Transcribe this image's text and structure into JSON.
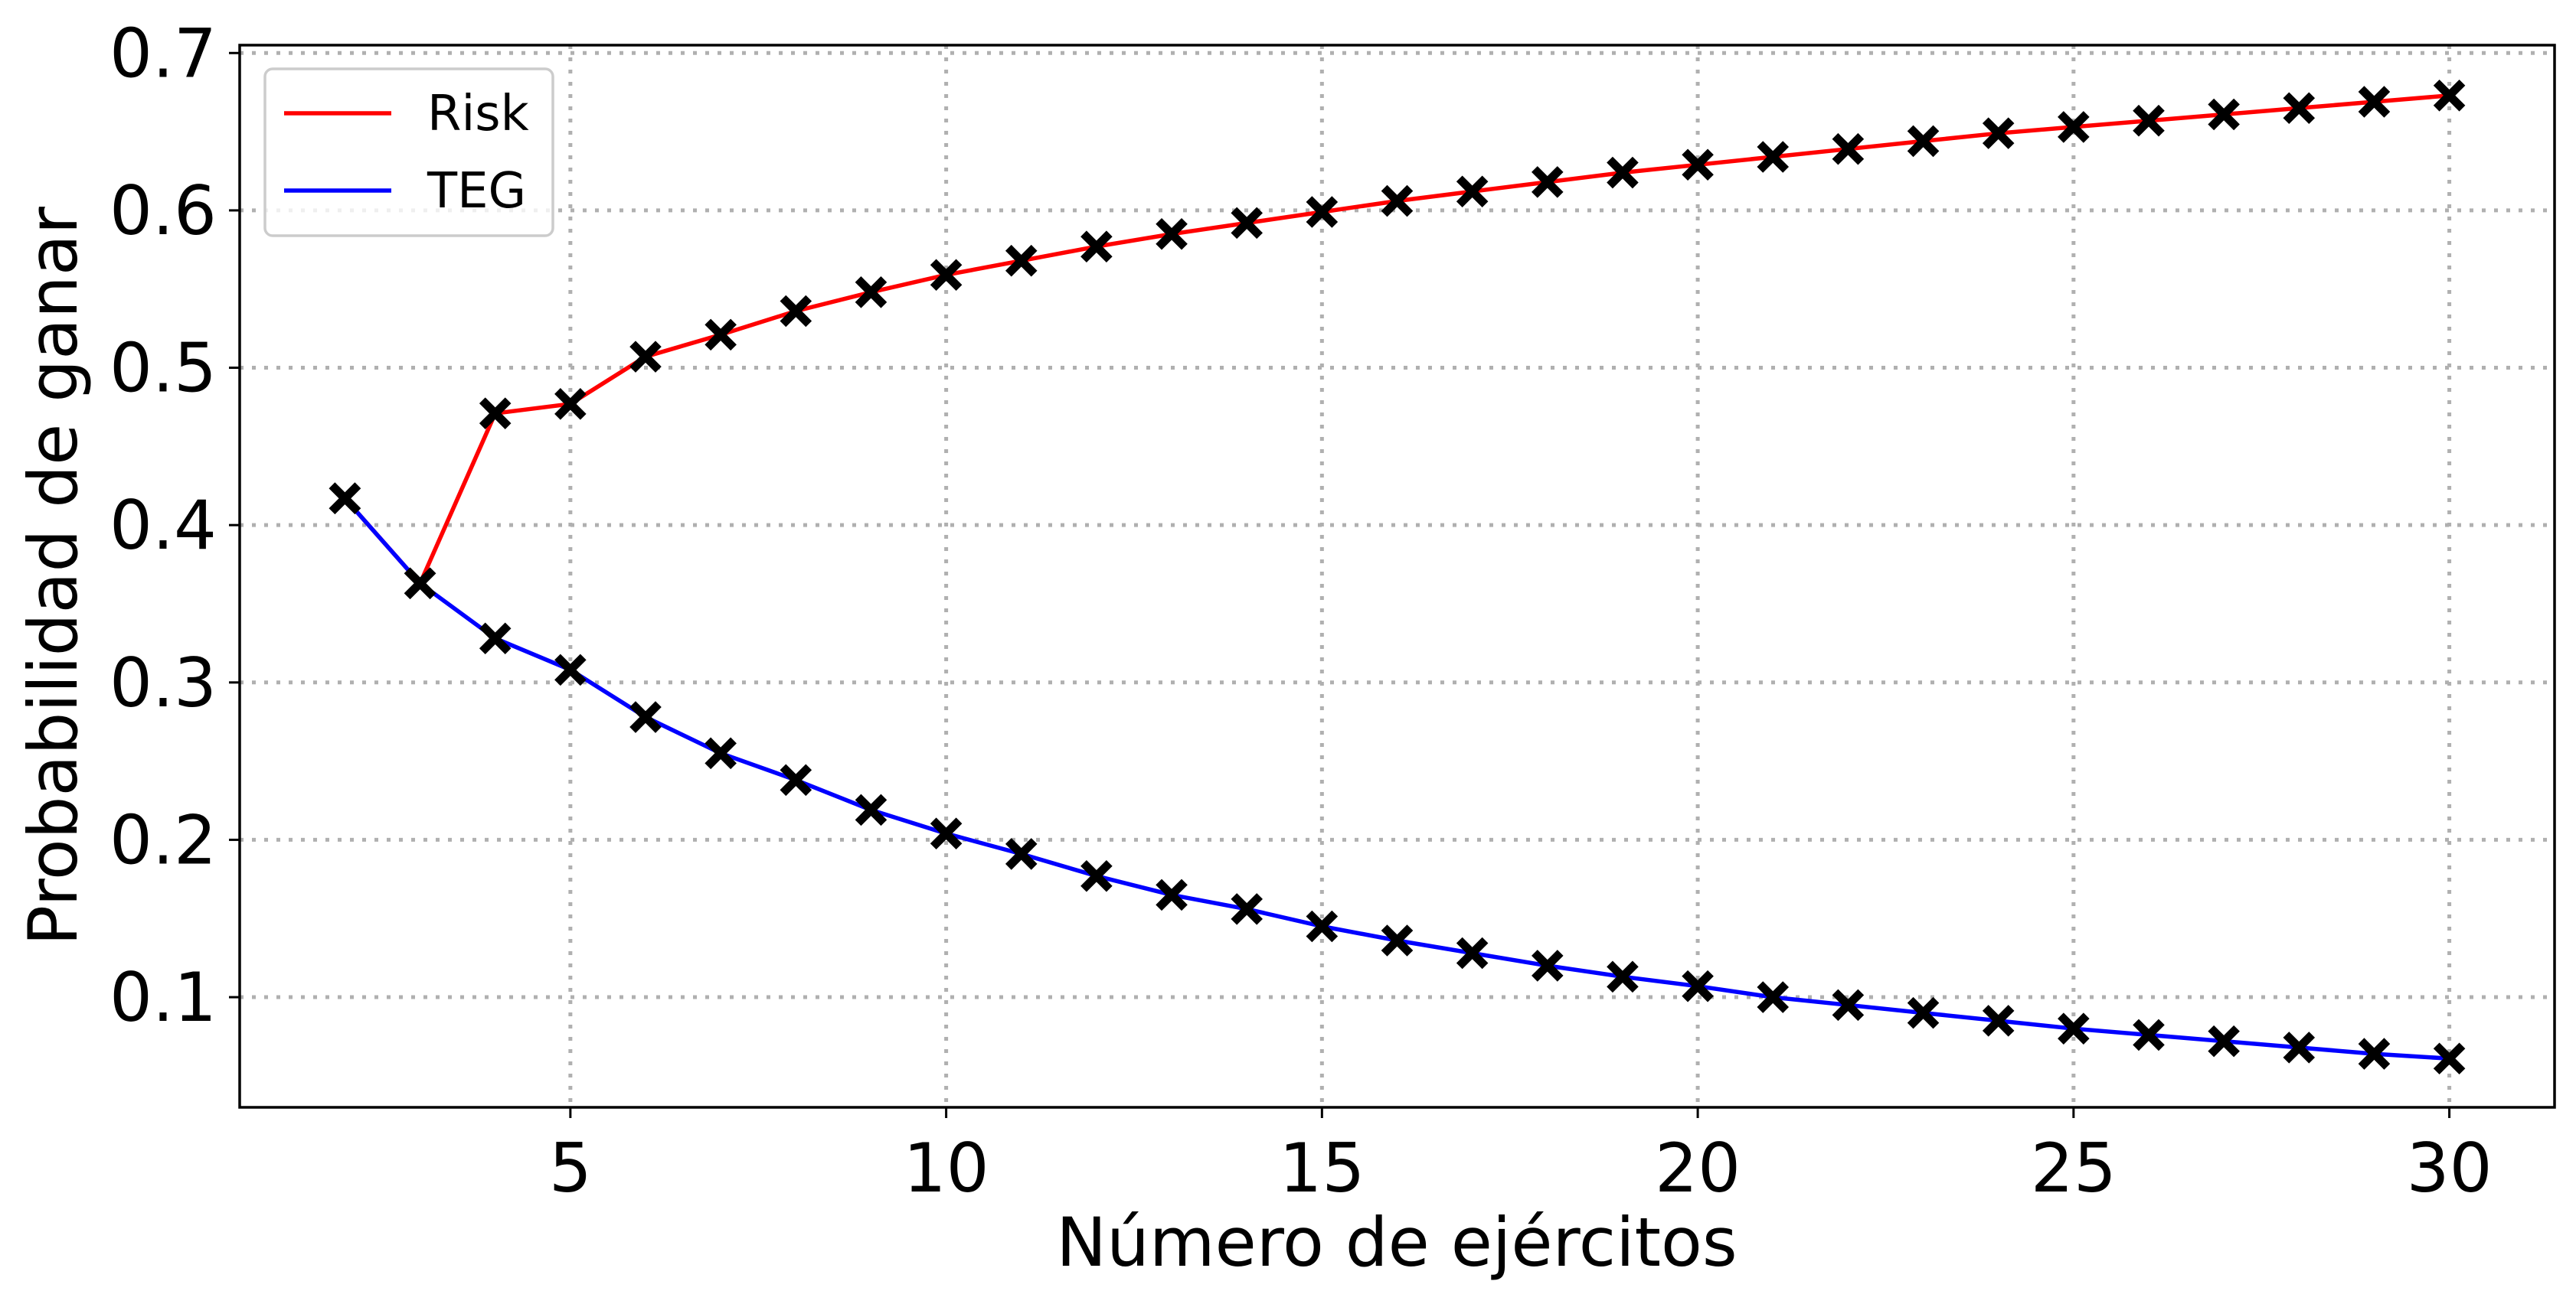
{
  "chart_data": {
    "type": "line",
    "xlabel": "Número de ejércitos",
    "ylabel": "Probabilidad de ganar",
    "xlim": [
      0.6,
      31.4
    ],
    "ylim": [
      0.03,
      0.705
    ],
    "x_ticks": [
      5,
      10,
      15,
      20,
      25,
      30
    ],
    "y_ticks": [
      0.1,
      0.2,
      0.3,
      0.4,
      0.5,
      0.6,
      0.7
    ],
    "x_tick_labels": [
      "5",
      "10",
      "15",
      "20",
      "25",
      "30"
    ],
    "y_tick_labels": [
      "0.1",
      "0.2",
      "0.3",
      "0.4",
      "0.5",
      "0.6",
      "0.7"
    ],
    "grid": true,
    "marker": "X",
    "marker_color": "#000000",
    "legend": {
      "placement": "top-left"
    },
    "series": [
      {
        "name": "Risk",
        "color": "#ff0000",
        "x": [
          2,
          3,
          4,
          5,
          6,
          7,
          8,
          9,
          10,
          11,
          12,
          13,
          14,
          15,
          16,
          17,
          18,
          19,
          20,
          21,
          22,
          23,
          24,
          25,
          26,
          27,
          28,
          29,
          30
        ],
        "values": [
          0.417,
          0.363,
          0.471,
          0.477,
          0.507,
          0.521,
          0.536,
          0.548,
          0.559,
          0.568,
          0.577,
          0.585,
          0.592,
          0.599,
          0.606,
          0.612,
          0.618,
          0.624,
          0.629,
          0.634,
          0.639,
          0.644,
          0.649,
          0.653,
          0.657,
          0.661,
          0.665,
          0.669,
          0.673
        ]
      },
      {
        "name": "TEG",
        "color": "#0000ff",
        "x": [
          2,
          3,
          4,
          5,
          6,
          7,
          8,
          9,
          10,
          11,
          12,
          13,
          14,
          15,
          16,
          17,
          18,
          19,
          20,
          21,
          22,
          23,
          24,
          25,
          26,
          27,
          28,
          29,
          30
        ],
        "values": [
          0.417,
          0.363,
          0.328,
          0.308,
          0.278,
          0.255,
          0.238,
          0.219,
          0.204,
          0.191,
          0.177,
          0.165,
          0.156,
          0.145,
          0.136,
          0.128,
          0.12,
          0.113,
          0.107,
          0.1,
          0.095,
          0.09,
          0.085,
          0.08,
          0.076,
          0.072,
          0.068,
          0.064,
          0.061
        ]
      }
    ]
  }
}
